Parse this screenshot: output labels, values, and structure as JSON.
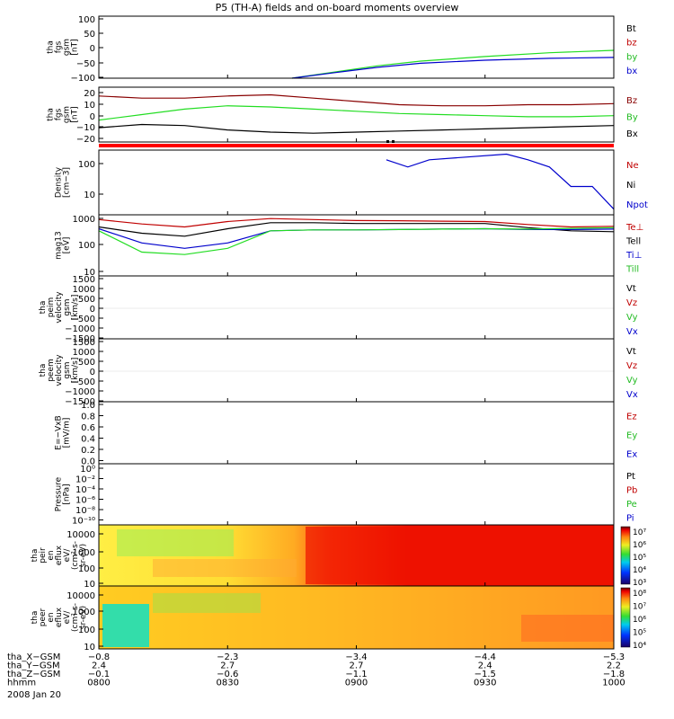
{
  "title": "P5 (TH-A) fields and on-board moments overview",
  "date_label": "2008 Jan 20",
  "colors": {
    "black": "#000000",
    "red": "#c00000",
    "darkred": "#880000",
    "green": "#22dd22",
    "blue": "#0000cc",
    "sw_red": "#ff0000"
  },
  "panels": [
    {
      "ylabel": [
        "tha",
        "fgs",
        "gsm",
        "[nT]"
      ],
      "ticks": [
        "100",
        "50",
        "0",
        "−50",
        "−100"
      ],
      "legend": [
        {
          "text": "Bt",
          "color": "#000000"
        },
        {
          "text": "bz",
          "color": "#c00000"
        },
        {
          "text": "by",
          "color": "#22bb22"
        },
        {
          "text": "bx",
          "color": "#0000cc"
        }
      ]
    },
    {
      "ylabel": [
        "tha",
        "fgs",
        "gsm",
        "[nT]"
      ],
      "ticks": [
        "20",
        "10",
        "0",
        "−10",
        "−20"
      ],
      "legend": [
        {
          "text": "Bz",
          "color": "#880000"
        },
        {
          "text": "By",
          "color": "#22bb22"
        },
        {
          "text": "Bx",
          "color": "#000000"
        }
      ]
    },
    {
      "ylabel": [
        "Density",
        "[cm−3]"
      ],
      "ticks": [
        "100",
        "10"
      ],
      "legend": [
        {
          "text": "Ne",
          "color": "#c00000"
        },
        {
          "text": "Ni",
          "color": "#000000"
        },
        {
          "text": "Npot",
          "color": "#0000cc"
        }
      ]
    },
    {
      "ylabel": [
        "mag13",
        "[eV]"
      ],
      "ticks": [
        "1000",
        "100",
        "10"
      ],
      "legend": [
        {
          "text": "Te⊥",
          "color": "#c00000"
        },
        {
          "text": "Tell",
          "color": "#000000"
        },
        {
          "text": "Ti⊥",
          "color": "#0000cc"
        },
        {
          "text": "Till",
          "color": "#22bb22"
        }
      ]
    },
    {
      "ylabel": [
        "tha",
        "peim",
        "velocity",
        "gsm",
        "[km/s]"
      ],
      "ticks": [
        "1500",
        "1000",
        "500",
        "0",
        "−500",
        "−1000",
        "−1500"
      ],
      "legend": [
        {
          "text": "Vt",
          "color": "#000000"
        },
        {
          "text": "Vz",
          "color": "#c00000"
        },
        {
          "text": "Vy",
          "color": "#22bb22"
        },
        {
          "text": "Vx",
          "color": "#0000cc"
        }
      ]
    },
    {
      "ylabel": [
        "tha",
        "peem",
        "velocity",
        "gsm",
        "[km/s]"
      ],
      "ticks": [
        "1500",
        "1000",
        "500",
        "0",
        "−500",
        "−1000",
        "−1500"
      ],
      "legend": [
        {
          "text": "Vt",
          "color": "#000000"
        },
        {
          "text": "Vz",
          "color": "#c00000"
        },
        {
          "text": "Vy",
          "color": "#22bb22"
        },
        {
          "text": "Vx",
          "color": "#0000cc"
        }
      ]
    },
    {
      "ylabel": [
        "E=−VxB",
        "[mV/m]"
      ],
      "ticks": [
        "1.0",
        "0.8",
        "0.6",
        "0.4",
        "0.2",
        "0.0"
      ],
      "legend": [
        {
          "text": "Ez",
          "color": "#c00000"
        },
        {
          "text": "Ey",
          "color": "#22bb22"
        },
        {
          "text": "Ex",
          "color": "#0000cc"
        }
      ]
    },
    {
      "ylabel": [
        "Pressure",
        "[nPa]"
      ],
      "ticks": [
        "10⁰",
        "10⁻²",
        "10⁻⁴",
        "10⁻⁶",
        "10⁻⁸",
        "10⁻¹⁰"
      ],
      "legend": [
        {
          "text": "Pt",
          "color": "#000000"
        },
        {
          "text": "Pb",
          "color": "#c00000"
        },
        {
          "text": "Pe",
          "color": "#22bb22"
        },
        {
          "text": "Pi",
          "color": "#0000cc"
        }
      ]
    },
    {
      "ylabel": [
        "tha",
        "peir",
        "en",
        "eflux",
        "eV/",
        "(cm²-s-",
        "sr-eV)"
      ],
      "ticks": [
        "10000",
        "1000",
        "100",
        "10"
      ],
      "colorbar": [
        "10⁷",
        "10⁶",
        "10⁵",
        "10⁴",
        "10³"
      ]
    },
    {
      "ylabel": [
        "tha",
        "peer",
        "en",
        "eflux",
        "eV/",
        "(cm²-s-",
        "sr-eV)"
      ],
      "ticks": [
        "10000",
        "1000",
        "100",
        "10"
      ],
      "colorbar": [
        "10⁸",
        "10⁷",
        "10⁶",
        "10⁵",
        "10⁴"
      ]
    }
  ],
  "footer": {
    "row_labels": [
      "tha_X−GSM",
      "tha_Y−GSM",
      "tha_Z−GSM",
      "hhmm"
    ],
    "columns": [
      [
        "−0.8",
        "2.4",
        "−0.1",
        "0800"
      ],
      [
        "−2.3",
        "2.7",
        "−0.6",
        "0830"
      ],
      [
        "−3.4",
        "2.7",
        "−1.1",
        "0900"
      ],
      [
        "−4.4",
        "2.4",
        "−1.5",
        "0930"
      ],
      [
        "−5.3",
        "2.2",
        "−1.8",
        "1000"
      ]
    ]
  },
  "chart_data": {
    "type": "line",
    "title": "P5 (TH-A) fields and on-board moments overview",
    "x_label": "hhmm",
    "x_ticks": [
      "0800",
      "0830",
      "0900",
      "0930",
      "1000"
    ],
    "xlim": [
      "0800",
      "1000"
    ],
    "series": [
      {
        "panel": 0,
        "name": "by",
        "color": "#22dd22",
        "x": [
          "0845",
          "0855",
          "0905",
          "0915",
          "0930",
          "0945",
          "1000"
        ],
        "y": [
          -100,
          -80,
          -60,
          -45,
          -30,
          -18,
          -10
        ]
      },
      {
        "panel": 0,
        "name": "bx",
        "color": "#0000cc",
        "x": [
          "0845",
          "0855",
          "0905",
          "0915",
          "0930",
          "0945",
          "1000"
        ],
        "y": [
          -100,
          -82,
          -65,
          -52,
          -42,
          -36,
          -33
        ]
      },
      {
        "panel": 1,
        "name": "Bz",
        "color": "#880000",
        "x": [
          "0800",
          "0810",
          "0820",
          "0830",
          "0840",
          "0850",
          "0900",
          "0910",
          "0920",
          "0930",
          "0940",
          "0950",
          "1000"
        ],
        "y": [
          17,
          15,
          15,
          17,
          18,
          15,
          12,
          9,
          8,
          8,
          9,
          9,
          10
        ]
      },
      {
        "panel": 1,
        "name": "By",
        "color": "#22dd22",
        "x": [
          "0800",
          "0810",
          "0820",
          "0830",
          "0840",
          "0850",
          "0900",
          "0910",
          "0920",
          "0930",
          "0940",
          "0950",
          "1000"
        ],
        "y": [
          -5,
          0,
          5,
          8,
          7,
          5,
          3,
          1,
          0,
          -1,
          -2,
          -2,
          -1
        ]
      },
      {
        "panel": 1,
        "name": "Bx",
        "color": "#000000",
        "x": [
          "0800",
          "0810",
          "0820",
          "0830",
          "0840",
          "0850",
          "0900",
          "0910",
          "0920",
          "0930",
          "0940",
          "0950",
          "1000"
        ],
        "y": [
          -12,
          -9,
          -10,
          -14,
          -16,
          -17,
          -16,
          -15,
          -14,
          -13,
          -12,
          -11,
          -10
        ]
      },
      {
        "panel": 2,
        "name": "Npot",
        "color": "#0000cc",
        "x": [
          "0907",
          "0912",
          "0917",
          "0935",
          "0940",
          "0945",
          "0950",
          "0955",
          "1000"
        ],
        "y": [
          100,
          60,
          100,
          150,
          100,
          60,
          15,
          15,
          3
        ]
      },
      {
        "panel": 3,
        "name": "Te⊥",
        "color": "#c00000",
        "x": [
          "0800",
          "0810",
          "0820",
          "0830",
          "0840",
          "0850",
          "0900",
          "0910",
          "0920",
          "0930",
          "0940",
          "0950",
          "1000"
        ],
        "y": [
          700,
          500,
          400,
          600,
          750,
          700,
          650,
          640,
          620,
          600,
          480,
          400,
          420
        ]
      },
      {
        "panel": 3,
        "name": "Tell",
        "color": "#000000",
        "x": [
          "0800",
          "0810",
          "0820",
          "0830",
          "0840",
          "0850",
          "0900",
          "0910",
          "0920",
          "0930",
          "0940",
          "0950",
          "1000"
        ],
        "y": [
          400,
          250,
          200,
          350,
          550,
          550,
          520,
          520,
          520,
          520,
          380,
          300,
          280
        ]
      },
      {
        "panel": 3,
        "name": "Ti⊥",
        "color": "#0000cc",
        "x": [
          "0800",
          "0810",
          "0820",
          "0830",
          "0840",
          "0850",
          "0900",
          "0910",
          "0920",
          "0930",
          "0940",
          "0950",
          "1000"
        ],
        "y": [
          350,
          120,
          80,
          120,
          300,
          320,
          320,
          330,
          340,
          350,
          330,
          330,
          340
        ]
      },
      {
        "panel": 3,
        "name": "Till",
        "color": "#22dd22",
        "x": [
          "0800",
          "0810",
          "0820",
          "0830",
          "0840",
          "0850",
          "0900",
          "0910",
          "0920",
          "0930",
          "0940",
          "0950",
          "1000"
        ],
        "y": [
          300,
          60,
          50,
          80,
          300,
          320,
          320,
          330,
          340,
          350,
          340,
          360,
          380
        ]
      }
    ],
    "spectrograms": [
      {
        "panel": 8,
        "name": "tha peir en eflux",
        "ylim": [
          5,
          25000
        ],
        "y_scale": "log",
        "colorbar_range": [
          "10³",
          "10⁷"
        ]
      },
      {
        "panel": 9,
        "name": "tha peer en eflux",
        "ylim": [
          5,
          25000
        ],
        "y_scale": "log",
        "colorbar_range": [
          "10⁴",
          "10⁸"
        ]
      }
    ]
  }
}
